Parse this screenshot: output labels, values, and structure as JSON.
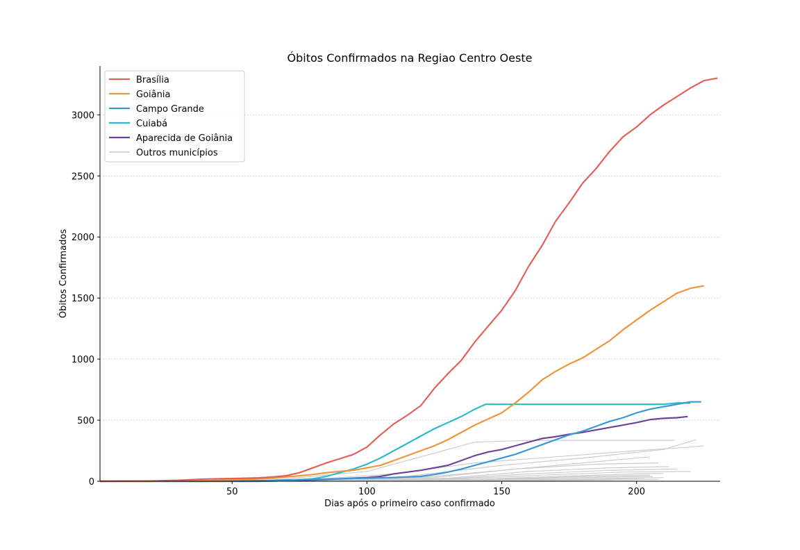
{
  "chart_data": {
    "type": "line",
    "title": "Óbitos Confirmados na Regiao Centro Oeste",
    "xlabel": "Dias após o primeiro caso confirmado",
    "ylabel": "Óbitos Confirmados",
    "xlim": [
      1,
      231
    ],
    "ylim": [
      0,
      3400
    ],
    "xticks": [
      50,
      100,
      150,
      200
    ],
    "yticks": [
      0,
      500,
      1000,
      1500,
      2000,
      2500,
      3000
    ],
    "grid": "horizontal dotted",
    "legend_position": "top-left",
    "series": [
      {
        "name": "Brasília",
        "color": "#e1605a",
        "points": [
          [
            1,
            0
          ],
          [
            20,
            2
          ],
          [
            30,
            8
          ],
          [
            40,
            18
          ],
          [
            50,
            22
          ],
          [
            60,
            28
          ],
          [
            65,
            35
          ],
          [
            70,
            45
          ],
          [
            75,
            70
          ],
          [
            80,
            110
          ],
          [
            85,
            150
          ],
          [
            90,
            185
          ],
          [
            95,
            220
          ],
          [
            100,
            280
          ],
          [
            105,
            380
          ],
          [
            110,
            470
          ],
          [
            115,
            540
          ],
          [
            120,
            620
          ],
          [
            125,
            760
          ],
          [
            130,
            880
          ],
          [
            135,
            990
          ],
          [
            140,
            1140
          ],
          [
            145,
            1270
          ],
          [
            150,
            1400
          ],
          [
            155,
            1560
          ],
          [
            160,
            1760
          ],
          [
            165,
            1930
          ],
          [
            170,
            2130
          ],
          [
            175,
            2280
          ],
          [
            180,
            2440
          ],
          [
            185,
            2560
          ],
          [
            190,
            2700
          ],
          [
            195,
            2820
          ],
          [
            200,
            2900
          ],
          [
            205,
            3000
          ],
          [
            210,
            3080
          ],
          [
            215,
            3150
          ],
          [
            220,
            3220
          ],
          [
            225,
            3280
          ],
          [
            230,
            3300
          ]
        ]
      },
      {
        "name": "Goiânia",
        "color": "#f0943a",
        "points": [
          [
            1,
            0
          ],
          [
            20,
            0
          ],
          [
            30,
            2
          ],
          [
            40,
            5
          ],
          [
            50,
            10
          ],
          [
            60,
            20
          ],
          [
            65,
            25
          ],
          [
            70,
            35
          ],
          [
            75,
            45
          ],
          [
            80,
            55
          ],
          [
            85,
            70
          ],
          [
            90,
            80
          ],
          [
            95,
            90
          ],
          [
            100,
            110
          ],
          [
            105,
            130
          ],
          [
            110,
            170
          ],
          [
            115,
            210
          ],
          [
            120,
            250
          ],
          [
            125,
            290
          ],
          [
            130,
            340
          ],
          [
            135,
            400
          ],
          [
            140,
            460
          ],
          [
            145,
            510
          ],
          [
            150,
            560
          ],
          [
            155,
            640
          ],
          [
            160,
            730
          ],
          [
            165,
            830
          ],
          [
            170,
            900
          ],
          [
            175,
            960
          ],
          [
            180,
            1010
          ],
          [
            185,
            1080
          ],
          [
            190,
            1150
          ],
          [
            195,
            1240
          ],
          [
            200,
            1320
          ],
          [
            205,
            1400
          ],
          [
            210,
            1470
          ],
          [
            215,
            1540
          ],
          [
            220,
            1580
          ],
          [
            225,
            1600
          ]
        ]
      },
      {
        "name": "Campo Grande",
        "color": "#3a97d7",
        "points": [
          [
            1,
            0
          ],
          [
            40,
            0
          ],
          [
            50,
            2
          ],
          [
            60,
            5
          ],
          [
            70,
            10
          ],
          [
            80,
            15
          ],
          [
            90,
            20
          ],
          [
            100,
            25
          ],
          [
            110,
            30
          ],
          [
            120,
            40
          ],
          [
            125,
            55
          ],
          [
            130,
            75
          ],
          [
            135,
            100
          ],
          [
            140,
            130
          ],
          [
            145,
            160
          ],
          [
            150,
            190
          ],
          [
            155,
            220
          ],
          [
            160,
            260
          ],
          [
            165,
            300
          ],
          [
            170,
            340
          ],
          [
            175,
            380
          ],
          [
            180,
            410
          ],
          [
            185,
            450
          ],
          [
            190,
            490
          ],
          [
            195,
            520
          ],
          [
            200,
            560
          ],
          [
            205,
            590
          ],
          [
            210,
            610
          ],
          [
            215,
            630
          ],
          [
            220,
            650
          ],
          [
            224,
            650
          ]
        ]
      },
      {
        "name": "Cuiabá",
        "color": "#2fbac4",
        "points": [
          [
            1,
            0
          ],
          [
            60,
            0
          ],
          [
            70,
            5
          ],
          [
            80,
            20
          ],
          [
            85,
            40
          ],
          [
            90,
            70
          ],
          [
            95,
            100
          ],
          [
            100,
            140
          ],
          [
            105,
            190
          ],
          [
            110,
            250
          ],
          [
            115,
            310
          ],
          [
            120,
            370
          ],
          [
            125,
            430
          ],
          [
            130,
            480
          ],
          [
            135,
            530
          ],
          [
            140,
            590
          ],
          [
            144,
            630
          ],
          [
            150,
            630
          ],
          [
            160,
            630
          ],
          [
            180,
            630
          ],
          [
            200,
            630
          ],
          [
            210,
            630
          ],
          [
            215,
            640
          ],
          [
            220,
            640
          ]
        ]
      },
      {
        "name": "Aparecida de Goiânia",
        "color": "#6a4597",
        "points": [
          [
            1,
            0
          ],
          [
            60,
            0
          ],
          [
            70,
            5
          ],
          [
            80,
            10
          ],
          [
            90,
            20
          ],
          [
            100,
            30
          ],
          [
            105,
            40
          ],
          [
            110,
            60
          ],
          [
            115,
            75
          ],
          [
            120,
            90
          ],
          [
            125,
            110
          ],
          [
            130,
            130
          ],
          [
            135,
            170
          ],
          [
            140,
            210
          ],
          [
            145,
            240
          ],
          [
            150,
            260
          ],
          [
            155,
            290
          ],
          [
            160,
            320
          ],
          [
            165,
            350
          ],
          [
            170,
            365
          ],
          [
            175,
            385
          ],
          [
            180,
            400
          ],
          [
            185,
            420
          ],
          [
            190,
            440
          ],
          [
            195,
            460
          ],
          [
            200,
            480
          ],
          [
            205,
            505
          ],
          [
            210,
            515
          ],
          [
            215,
            520
          ],
          [
            219,
            530
          ]
        ]
      }
    ],
    "other_series": {
      "name": "Outros municípios",
      "color": "#cccccc",
      "lines": [
        [
          [
            60,
            0
          ],
          [
            100,
            80
          ],
          [
            120,
            200
          ],
          [
            140,
            320
          ],
          [
            160,
            335
          ],
          [
            180,
            335
          ],
          [
            214,
            335
          ]
        ],
        [
          [
            70,
            0
          ],
          [
            110,
            60
          ],
          [
            140,
            150
          ],
          [
            170,
            200
          ],
          [
            200,
            250
          ],
          [
            220,
            280
          ],
          [
            225,
            290
          ]
        ],
        [
          [
            75,
            0
          ],
          [
            115,
            40
          ],
          [
            150,
            130
          ],
          [
            180,
            190
          ],
          [
            210,
            260
          ],
          [
            222,
            340
          ]
        ],
        [
          [
            80,
            0
          ],
          [
            120,
            30
          ],
          [
            150,
            90
          ],
          [
            180,
            150
          ],
          [
            205,
            200
          ]
        ],
        [
          [
            85,
            0
          ],
          [
            125,
            30
          ],
          [
            155,
            100
          ],
          [
            185,
            140
          ],
          [
            208,
            150
          ]
        ],
        [
          [
            90,
            0
          ],
          [
            130,
            25
          ],
          [
            160,
            80
          ],
          [
            190,
            110
          ],
          [
            212,
            120
          ]
        ],
        [
          [
            95,
            0
          ],
          [
            130,
            20
          ],
          [
            160,
            60
          ],
          [
            190,
            90
          ],
          [
            215,
            100
          ]
        ],
        [
          [
            100,
            0
          ],
          [
            135,
            20
          ],
          [
            165,
            50
          ],
          [
            195,
            75
          ],
          [
            220,
            80
          ]
        ],
        [
          [
            100,
            0
          ],
          [
            140,
            15
          ],
          [
            170,
            40
          ],
          [
            200,
            60
          ],
          [
            210,
            65
          ]
        ],
        [
          [
            105,
            0
          ],
          [
            140,
            10
          ],
          [
            175,
            35
          ],
          [
            205,
            50
          ]
        ],
        [
          [
            110,
            0
          ],
          [
            145,
            10
          ],
          [
            180,
            30
          ],
          [
            206,
            40
          ]
        ],
        [
          [
            110,
            0
          ],
          [
            150,
            8
          ],
          [
            180,
            20
          ],
          [
            210,
            30
          ]
        ],
        [
          [
            115,
            0
          ],
          [
            155,
            5
          ],
          [
            185,
            15
          ],
          [
            203,
            25
          ]
        ],
        [
          [
            120,
            0
          ],
          [
            160,
            5
          ],
          [
            190,
            10
          ],
          [
            208,
            15
          ]
        ]
      ]
    }
  }
}
